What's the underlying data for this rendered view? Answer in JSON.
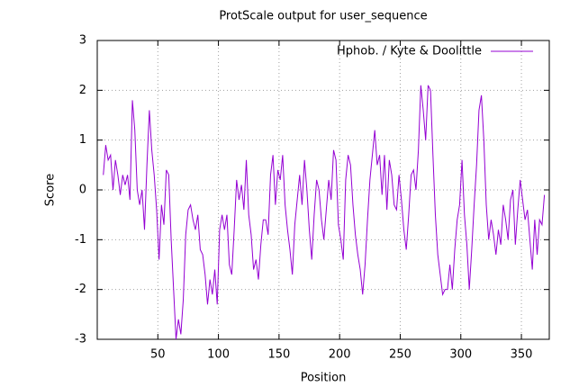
{
  "chart_data": {
    "type": "line",
    "title": "ProtScale output for user_sequence",
    "x_label": "Position",
    "y_label": "Score",
    "x": [
      5,
      7,
      9,
      11,
      13,
      15,
      17,
      19,
      21,
      23,
      25,
      27,
      29,
      31,
      33,
      35,
      37,
      39,
      41,
      43,
      45,
      47,
      49,
      51,
      53,
      55,
      57,
      59,
      61,
      63,
      65,
      67,
      69,
      71,
      73,
      75,
      77,
      79,
      81,
      83,
      85,
      87,
      89,
      91,
      93,
      95,
      97,
      99,
      101,
      103,
      105,
      107,
      109,
      111,
      113,
      115,
      117,
      119,
      121,
      123,
      125,
      127,
      129,
      131,
      133,
      135,
      137,
      139,
      141,
      143,
      145,
      147,
      149,
      151,
      153,
      155,
      157,
      159,
      161,
      163,
      165,
      167,
      169,
      171,
      173,
      175,
      177,
      179,
      181,
      183,
      185,
      187,
      189,
      191,
      193,
      195,
      197,
      199,
      201,
      203,
      205,
      207,
      209,
      211,
      213,
      215,
      217,
      219,
      221,
      223,
      225,
      227,
      229,
      231,
      233,
      235,
      237,
      239,
      241,
      243,
      245,
      247,
      249,
      251,
      253,
      255,
      257,
      259,
      261,
      263,
      265,
      267,
      269,
      271,
      273,
      275,
      277,
      279,
      281,
      283,
      285,
      287,
      289,
      291,
      293,
      295,
      297,
      299,
      301,
      303,
      305,
      307,
      309,
      311,
      313,
      315,
      317,
      319,
      321,
      323,
      325,
      327,
      329,
      331,
      333,
      335,
      337,
      339,
      341,
      343,
      345,
      347,
      349,
      351,
      353,
      355,
      357,
      359,
      361,
      363,
      365,
      367,
      369
    ],
    "series": [
      {
        "name": "Hphob. / Kyte & Doolittle",
        "color": "#9400d3",
        "values": [
          0.3,
          0.9,
          0.6,
          0.7,
          0,
          0.6,
          0.3,
          -0.1,
          0.3,
          0.1,
          0.3,
          -0.2,
          1.8,
          1.2,
          0,
          -0.3,
          0,
          -0.8,
          0.5,
          1.6,
          0.8,
          0.3,
          -0.4,
          -1.4,
          -0.3,
          -0.7,
          0.4,
          0.3,
          -1.0,
          -2.0,
          -3.0,
          -2.6,
          -2.9,
          -2.2,
          -0.9,
          -0.4,
          -0.3,
          -0.6,
          -0.8,
          -0.5,
          -1.2,
          -1.3,
          -1.7,
          -2.3,
          -1.8,
          -2.1,
          -1.6,
          -2.3,
          -0.8,
          -0.5,
          -0.8,
          -0.5,
          -1.5,
          -1.7,
          -0.8,
          0.2,
          -0.2,
          0.1,
          -0.4,
          0.6,
          -0.5,
          -0.9,
          -1.6,
          -1.4,
          -1.8,
          -1.1,
          -0.6,
          -0.6,
          -0.9,
          0.3,
          0.7,
          -0.3,
          0.4,
          0.2,
          0.7,
          -0.3,
          -0.8,
          -1.2,
          -1.7,
          -0.7,
          -0.2,
          0.3,
          -0.3,
          0.6,
          0,
          -0.8,
          -1.4,
          -0.5,
          0.2,
          0,
          -0.6,
          -1.0,
          -0.4,
          0.2,
          -0.2,
          0.8,
          0.6,
          -0.7,
          -1.0,
          -1.4,
          0.2,
          0.7,
          0.5,
          -0.3,
          -0.9,
          -1.3,
          -1.6,
          -2.1,
          -1.5,
          -0.6,
          0.2,
          0.7,
          1.2,
          0.5,
          0.7,
          -0.1,
          0.7,
          -0.4,
          0.6,
          0.3,
          -0.3,
          -0.4,
          0.3,
          -0.2,
          -0.8,
          -1.2,
          -0.5,
          0.3,
          0.4,
          0,
          0.8,
          2.1,
          1.6,
          1.0,
          2.1,
          2.0,
          0.7,
          -0.5,
          -1.3,
          -1.7,
          -2.1,
          -2.0,
          -2.0,
          -1.5,
          -2.0,
          -1.2,
          -0.6,
          -0.3,
          0.6,
          -0.5,
          -1.1,
          -2.0,
          -1.2,
          -0.3,
          0.5,
          1.6,
          1.9,
          1.0,
          -0.3,
          -1.0,
          -0.6,
          -0.9,
          -1.3,
          -0.8,
          -1.1,
          -0.3,
          -0.6,
          -1.0,
          -0.2,
          0,
          -1.1,
          -0.4,
          0.2,
          -0.2,
          -0.6,
          -0.4,
          -1.0,
          -1.6,
          -0.6,
          -1.3,
          -0.6,
          -0.7,
          -0.1
        ]
      }
    ],
    "xlim": [
      0,
      373
    ],
    "xticks": [
      50,
      100,
      150,
      200,
      250,
      300,
      350
    ],
    "ylim": [
      -3,
      3
    ],
    "yticks": [
      -3,
      -2,
      -1,
      0,
      1,
      2,
      3
    ],
    "grid": true,
    "legend": "top-right"
  }
}
